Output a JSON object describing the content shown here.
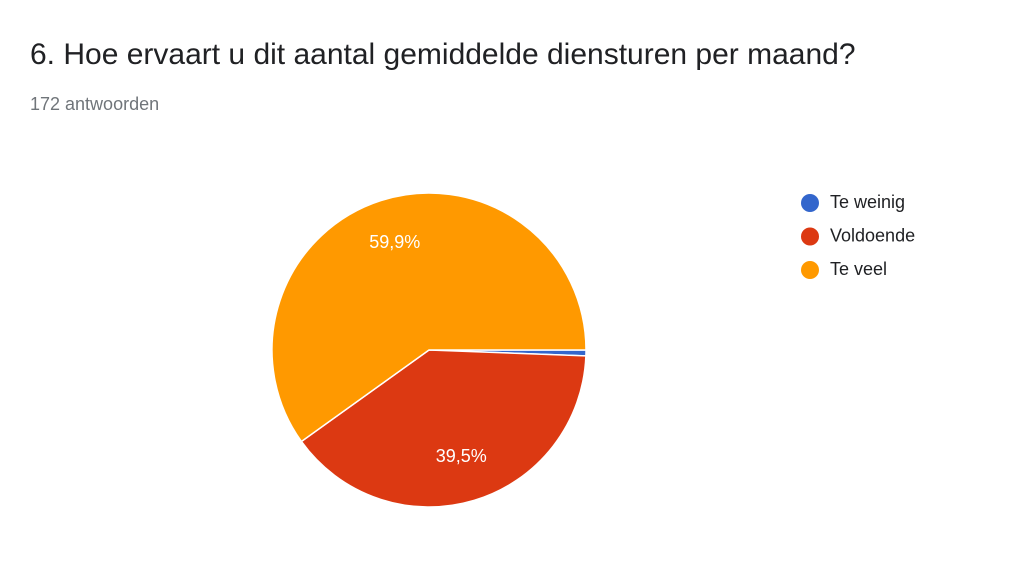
{
  "chart_data": {
    "type": "pie",
    "title": "6. Hoe ervaart u dit aantal gemiddelde diensturen per maand?",
    "subtitle": "172 antwoorden",
    "categories": [
      "Te weinig",
      "Voldoende",
      "Te veel"
    ],
    "values": [
      0.6,
      39.5,
      59.9
    ],
    "value_labels": [
      null,
      "39,5%",
      "59,9%"
    ],
    "colors": [
      "#3366cc",
      "#dc3912",
      "#ff9900"
    ],
    "legend": "right"
  }
}
